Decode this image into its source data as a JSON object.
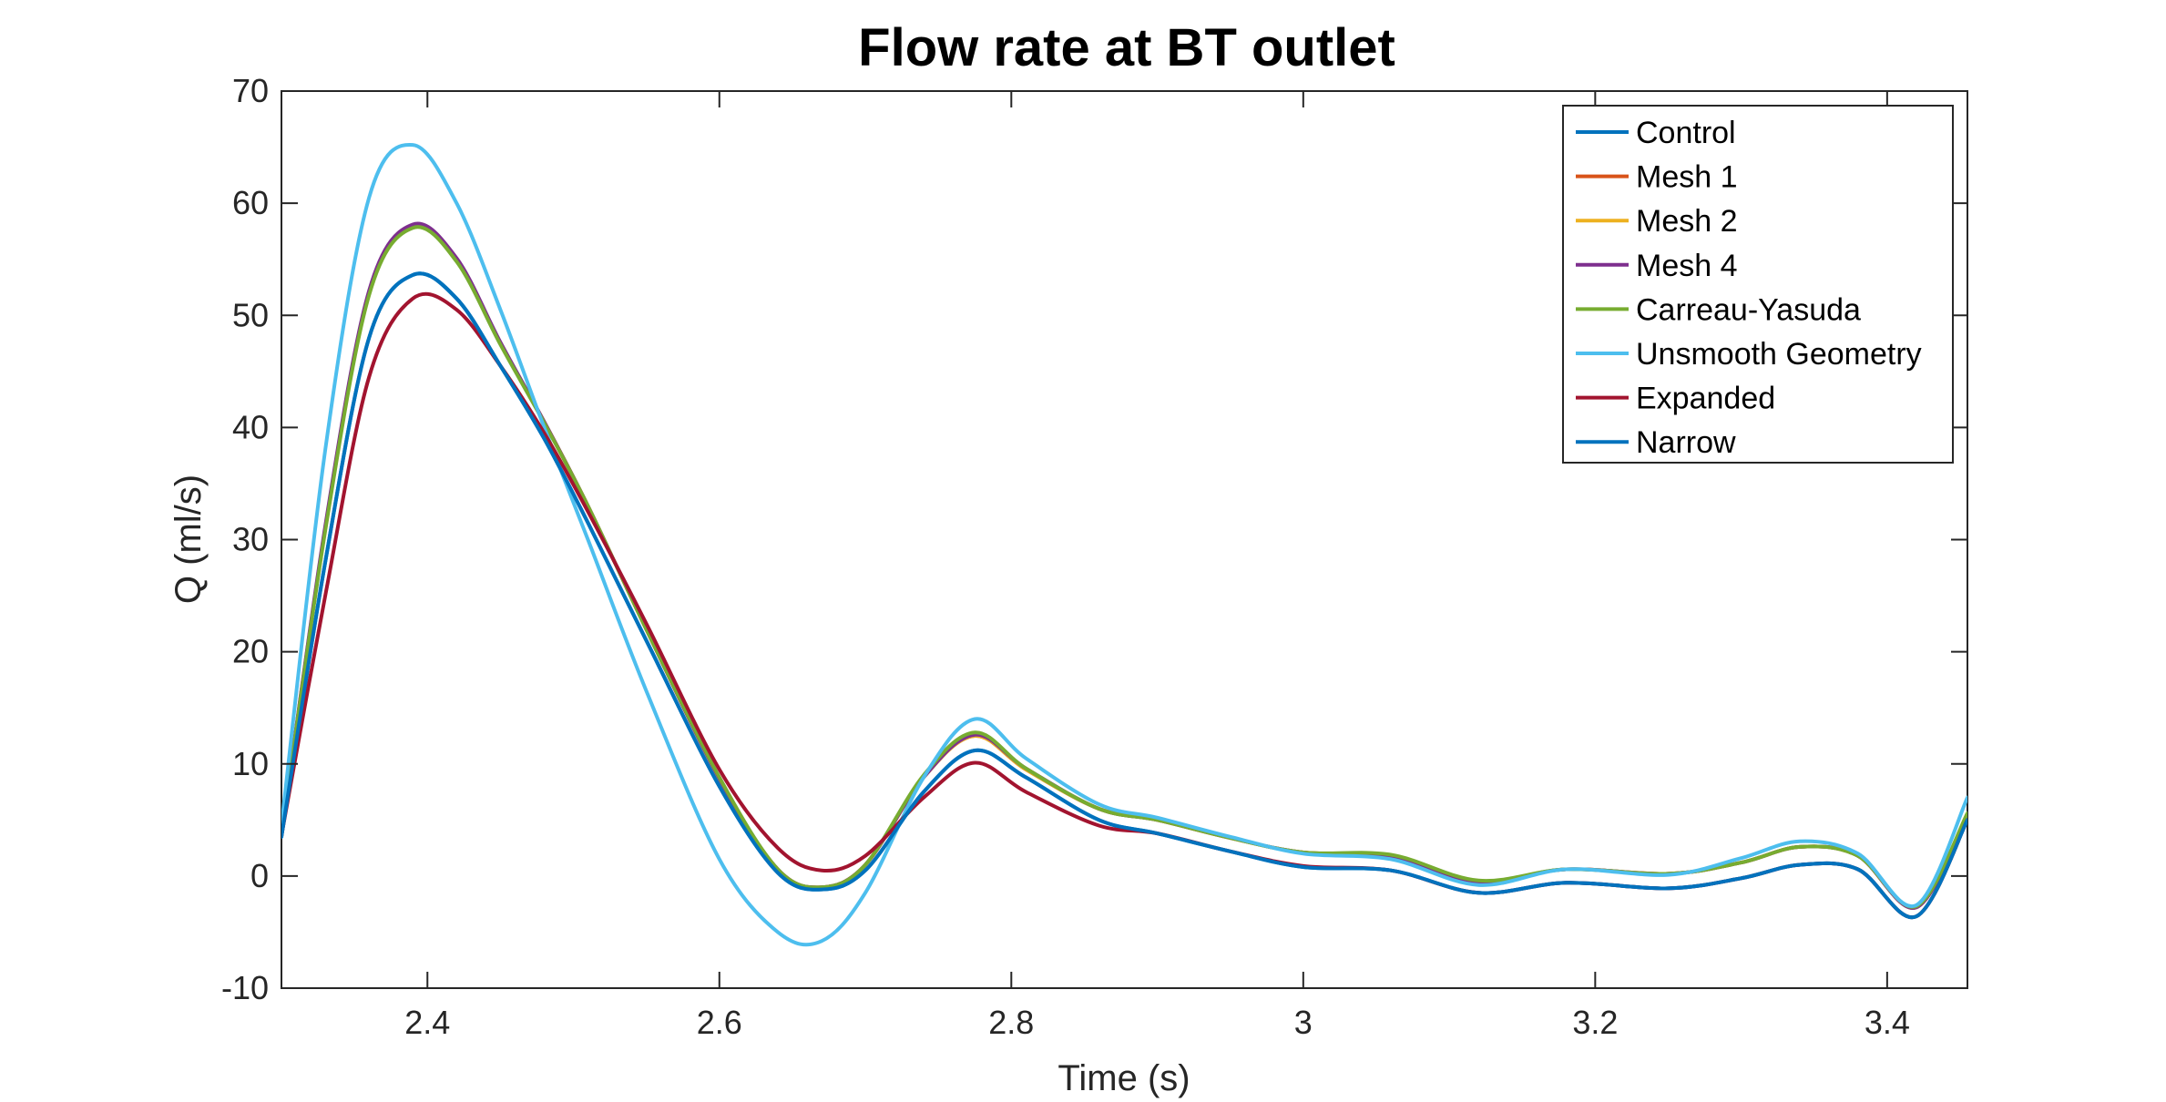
{
  "chart_data": {
    "type": "line",
    "title": "Flow rate at BT outlet",
    "xlabel": "Time (s)",
    "ylabel": "Q (ml/s)",
    "xlim": [
      2.3,
      3.455
    ],
    "ylim": [
      -10,
      70
    ],
    "xticks": [
      2.4,
      2.6,
      2.8,
      3,
      3.2,
      3.4
    ],
    "xtick_labels": [
      "2.4",
      "2.6",
      "2.8",
      "3",
      "3.2",
      "3.4"
    ],
    "yticks": [
      -10,
      0,
      10,
      20,
      30,
      40,
      50,
      60,
      70
    ],
    "ytick_labels": [
      "-10",
      "0",
      "10",
      "20",
      "30",
      "40",
      "50",
      "60",
      "70"
    ],
    "grid": false,
    "legend_position": "top-right",
    "x": [
      2.3,
      2.33,
      2.36,
      2.39,
      2.42,
      2.45,
      2.48,
      2.51,
      2.55,
      2.6,
      2.64,
      2.67,
      2.7,
      2.74,
      2.775,
      2.81,
      2.86,
      2.9,
      2.95,
      3.0,
      3.06,
      3.12,
      3.18,
      3.25,
      3.3,
      3.34,
      3.38,
      3.42,
      3.455
    ],
    "series": [
      {
        "name": "Control",
        "color": "#0072BD",
        "values": [
          3.5,
          28,
          48,
          53.6,
          51.5,
          45.5,
          39,
          31.5,
          21,
          8,
          0.3,
          -1.2,
          0.5,
          7.5,
          11.2,
          8.8,
          5.0,
          3.8,
          2.2,
          0.8,
          0.5,
          -1.5,
          -0.6,
          -1.1,
          -0.2,
          1.0,
          0.6,
          -3.6,
          5.0
        ]
      },
      {
        "name": "Mesh 1",
        "color": "#D95319",
        "values": [
          3.6,
          31,
          52,
          58,
          55,
          47.5,
          40.5,
          33,
          22,
          8.7,
          0.6,
          -1.0,
          1.0,
          8.8,
          12.5,
          9.5,
          6.0,
          5.0,
          3.4,
          2.1,
          1.8,
          -0.5,
          0.6,
          0.2,
          1.2,
          2.6,
          1.8,
          -2.8,
          5.5
        ]
      },
      {
        "name": "Mesh 2",
        "color": "#EDB120",
        "values": [
          3.6,
          31,
          52,
          58,
          55,
          47.5,
          40.5,
          33,
          22,
          8.7,
          0.6,
          -1.0,
          1.0,
          8.8,
          12.5,
          9.5,
          6.0,
          5.0,
          3.4,
          2.1,
          1.8,
          -0.5,
          0.6,
          0.2,
          1.2,
          2.6,
          1.8,
          -2.8,
          5.5
        ]
      },
      {
        "name": "Mesh 4",
        "color": "#7E2F8E",
        "values": [
          3.6,
          31.2,
          52.2,
          58.1,
          55.1,
          47.6,
          40.5,
          33,
          22,
          8.7,
          0.6,
          -1.0,
          1.0,
          8.8,
          12.6,
          9.6,
          6.0,
          5.0,
          3.4,
          2.1,
          1.8,
          -0.5,
          0.6,
          0.2,
          1.2,
          2.6,
          1.8,
          -2.8,
          5.5
        ]
      },
      {
        "name": "Carreau-Yasuda",
        "color": "#77AC30",
        "values": [
          3.6,
          30.8,
          51.8,
          57.8,
          54.8,
          47.4,
          40.4,
          33,
          22,
          8.8,
          0.6,
          -1.0,
          1.0,
          9.0,
          12.8,
          9.6,
          6.0,
          5.0,
          3.4,
          2.1,
          1.9,
          -0.4,
          0.6,
          0.2,
          1.2,
          2.6,
          1.8,
          -2.7,
          5.6
        ]
      },
      {
        "name": "Unsmooth Geometry",
        "color": "#4DBEEE",
        "values": [
          4.5,
          38,
          60.5,
          65.2,
          60,
          50.5,
          40,
          30,
          16.5,
          1.5,
          -5.0,
          -5.8,
          -1.5,
          8.8,
          14.0,
          10.5,
          6.4,
          5.2,
          3.5,
          2.0,
          1.5,
          -0.8,
          0.6,
          0.1,
          1.6,
          3.1,
          2.0,
          -2.6,
          7.0
        ]
      },
      {
        "name": "Expanded",
        "color": "#A2142F",
        "values": [
          3.6,
          25,
          44.5,
          51.5,
          50.5,
          45.5,
          39.5,
          32.5,
          22.5,
          9.5,
          2.5,
          0.5,
          1.8,
          7.0,
          10.1,
          7.5,
          4.5,
          3.8,
          2.2,
          0.9,
          0.5,
          -1.5,
          -0.6,
          -1.1,
          -0.2,
          1.0,
          0.6,
          -3.6,
          5.0
        ]
      },
      {
        "name": "Narrow",
        "color": "#0072BD",
        "values": [
          3.5,
          28,
          48,
          53.6,
          51.5,
          45.5,
          39,
          31.5,
          21,
          8,
          0.3,
          -1.2,
          0.5,
          7.5,
          11.2,
          8.8,
          5.0,
          3.8,
          2.2,
          0.8,
          0.5,
          -1.5,
          -0.6,
          -1.1,
          -0.2,
          1.0,
          0.6,
          -3.6,
          5.0
        ]
      }
    ]
  }
}
